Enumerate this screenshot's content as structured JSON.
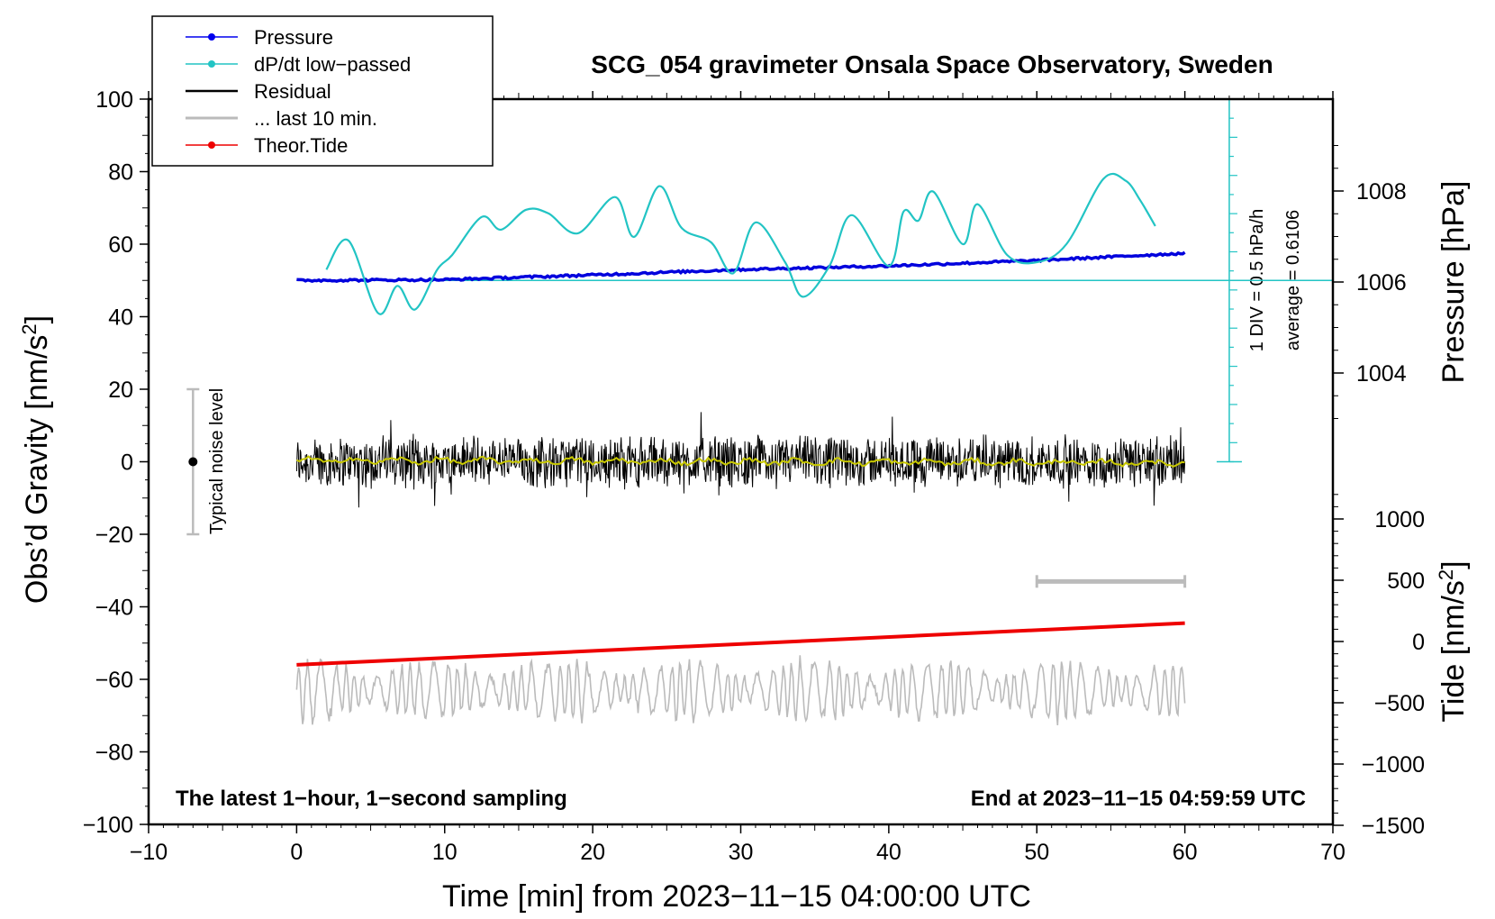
{
  "chart_data": {
    "type": "line",
    "title": "SCG_054 gravimeter Onsala Space Observatory, Sweden",
    "xlabel": "Time [min] from 2023−11−15 04:00:00 UTC",
    "ylabel_left": "Obs’d Gravity [nm/s",
    "ylabel_right_pressure": "Pressure [hPa]",
    "ylabel_right_tide": "Tide [nm/s",
    "superscript": "2",
    "closing_bracket": "]",
    "xlim": [
      -10,
      70
    ],
    "ylim": [
      -100,
      100
    ],
    "x_ticks": [
      -10,
      0,
      10,
      20,
      30,
      40,
      50,
      60,
      70
    ],
    "x_tick_labels": [
      "−10",
      "0",
      "10",
      "20",
      "30",
      "40",
      "50",
      "60",
      "70"
    ],
    "y_ticks": [
      100,
      80,
      60,
      40,
      20,
      0,
      -20,
      -40,
      -60,
      -80,
      -100
    ],
    "y_tick_labels": [
      "100",
      "80",
      "60",
      "40",
      "20",
      "0",
      "−20",
      "−40",
      "−60",
      "−80",
      "−100"
    ],
    "pressure_axis": {
      "ticks": [
        1008,
        1006,
        1004
      ],
      "tick_labels": [
        "1008",
        "1006",
        "1004"
      ]
    },
    "tide_axis": {
      "ticks": [
        1000,
        500,
        0,
        -500,
        -1000,
        -1500
      ],
      "tick_labels": [
        "1000",
        "500",
        "0",
        "−500",
        "−1000",
        "−1500"
      ]
    },
    "legend": [
      {
        "label": "Pressure",
        "color": "#0000ee",
        "marker": true
      },
      {
        "label": "dP/dt low−passed",
        "color": "#22c4c4",
        "marker": true
      },
      {
        "label": "Residual",
        "color": "#000000",
        "marker": false
      },
      {
        "label": "... last 10 min.",
        "color": "#bbbbbb",
        "marker": false
      },
      {
        "label": "Theor.Tide",
        "color": "#ee0000",
        "marker": true
      }
    ],
    "annotations": {
      "bottom_left": "The latest 1−hour, 1−second sampling",
      "bottom_right": "End at 2023−11−15 04:59:59 UTC",
      "noise_label": "Typical noise level",
      "div_label": "1 DIV = 0.5 hPa/h",
      "average_label": "average = 0.6106"
    },
    "noise_bar": {
      "x": -7,
      "center": 0,
      "range": [
        -20,
        20
      ]
    },
    "scale_bar": {
      "x_range": [
        50,
        60
      ],
      "y": -33
    },
    "series": [
      {
        "name": "Pressure",
        "color": "#0000dd",
        "x": [
          0,
          10,
          20,
          30,
          40,
          50,
          55,
          60
        ],
        "y": [
          50,
          50.2,
          51.5,
          53,
          54,
          55.5,
          56.5,
          57.5
        ]
      },
      {
        "name": "dP/dt low−passed",
        "color": "#22c4c4",
        "x": [
          2,
          3.5,
          5.5,
          6.8,
          8,
          9.5,
          10.5,
          12.5,
          13.8,
          15.5,
          17,
          19,
          21.5,
          22.8,
          24.5,
          26,
          28,
          29.5,
          31,
          33,
          34.2,
          36,
          37.5,
          40,
          41,
          42,
          43,
          45,
          46,
          48,
          50,
          52,
          54.5,
          56,
          57,
          58
        ],
        "y": [
          53,
          61,
          41,
          48.5,
          42,
          53,
          57,
          67.5,
          64,
          69.5,
          68.5,
          63,
          73,
          62,
          76,
          64.5,
          60.5,
          52,
          66,
          55,
          45.5,
          54,
          68,
          54,
          69,
          66.5,
          74.5,
          60,
          71,
          57,
          55,
          60,
          78,
          77.5,
          72,
          65
        ]
      },
      {
        "name": "Residual",
        "color": "#000000",
        "x_range": [
          0,
          60
        ],
        "amplitude": 8
      },
      {
        "name": "Residual smoothed",
        "color": "#c8c800",
        "x_range": [
          0,
          60
        ],
        "amplitude": 1
      },
      {
        "name": "... last 10 min.",
        "color": "#bbbbbb",
        "x_range": [
          0,
          60
        ],
        "center": -63,
        "amplitude": 6
      },
      {
        "name": "Theor.Tide",
        "color": "#ee0000",
        "x": [
          0,
          60
        ],
        "y": [
          -56,
          -44.5
        ]
      }
    ]
  }
}
